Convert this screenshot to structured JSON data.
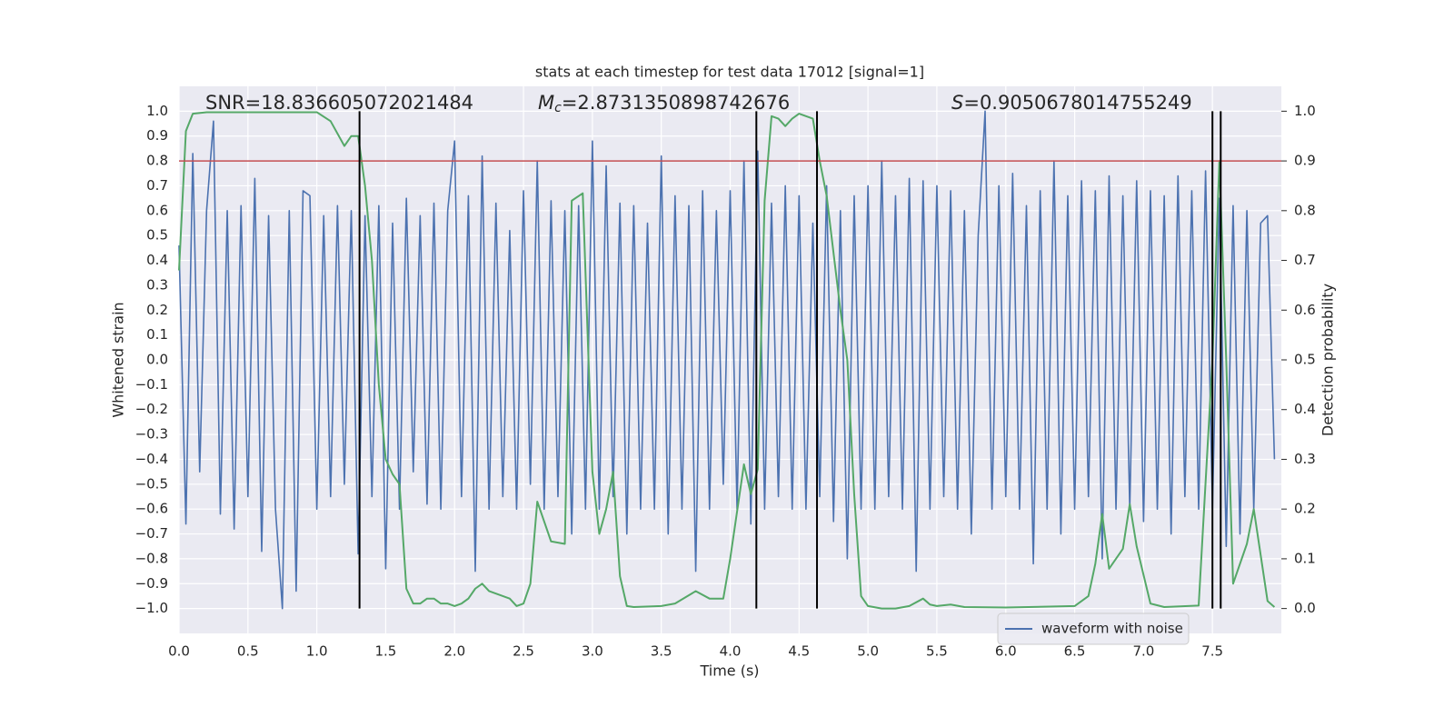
{
  "chart_data": {
    "type": "line",
    "title": "stats at each timestep for test data 17012 [signal=1]",
    "xlabel": "Time (s)",
    "ylabel": "Whitened strain",
    "y2label": "Detection probability",
    "annotations": {
      "snr": "SNR=18.836605072021484",
      "mc_symbol": "M",
      "mc_subscript": "c",
      "mc_value": "=2.8731350898742676",
      "s_symbol": "S",
      "s_value": "=0.9050678014755249"
    },
    "xlim": [
      0,
      8
    ],
    "ylim": [
      -1.1,
      1.1
    ],
    "y2lim": [
      -0.05,
      1.05
    ],
    "grid": true,
    "legend": "lower right",
    "xticks": [
      {
        "value": 0,
        "label": "0.0"
      },
      {
        "value": 0.5,
        "label": "0.5"
      },
      {
        "value": 1,
        "label": "1.0"
      },
      {
        "value": 1.5,
        "label": "1.5"
      },
      {
        "value": 2,
        "label": "2.0"
      },
      {
        "value": 2.5,
        "label": "2.5"
      },
      {
        "value": 3,
        "label": "3.0"
      },
      {
        "value": 3.5,
        "label": "3.5"
      },
      {
        "value": 4,
        "label": "4.0"
      },
      {
        "value": 4.5,
        "label": "4.5"
      },
      {
        "value": 5,
        "label": "5.0"
      },
      {
        "value": 5.5,
        "label": "5.5"
      },
      {
        "value": 6,
        "label": "6.0"
      },
      {
        "value": 6.5,
        "label": "6.5"
      },
      {
        "value": 7,
        "label": "7.0"
      },
      {
        "value": 7.5,
        "label": "7.5"
      }
    ],
    "yticks": [
      {
        "value": -1,
        "label": "−1.0"
      },
      {
        "value": -0.9,
        "label": "−0.9"
      },
      {
        "value": -0.8,
        "label": "−0.8"
      },
      {
        "value": -0.7,
        "label": "−0.7"
      },
      {
        "value": -0.6,
        "label": "−0.6"
      },
      {
        "value": -0.5,
        "label": "−0.5"
      },
      {
        "value": -0.4,
        "label": "−0.4"
      },
      {
        "value": -0.3,
        "label": "−0.3"
      },
      {
        "value": -0.2,
        "label": "−0.2"
      },
      {
        "value": -0.1,
        "label": "−0.1"
      },
      {
        "value": 0,
        "label": "0.0"
      },
      {
        "value": 0.1,
        "label": "0.1"
      },
      {
        "value": 0.2,
        "label": "0.2"
      },
      {
        "value": 0.3,
        "label": "0.3"
      },
      {
        "value": 0.4,
        "label": "0.4"
      },
      {
        "value": 0.5,
        "label": "0.5"
      },
      {
        "value": 0.6,
        "label": "0.6"
      },
      {
        "value": 0.7,
        "label": "0.7"
      },
      {
        "value": 0.8,
        "label": "0.8"
      },
      {
        "value": 0.9,
        "label": "0.9"
      },
      {
        "value": 1,
        "label": "1.0"
      }
    ],
    "y2ticks": [
      {
        "value": 0,
        "label": "0.0"
      },
      {
        "value": 0.1,
        "label": "0.1"
      },
      {
        "value": 0.2,
        "label": "0.2"
      },
      {
        "value": 0.3,
        "label": "0.3"
      },
      {
        "value": 0.4,
        "label": "0.4"
      },
      {
        "value": 0.5,
        "label": "0.5"
      },
      {
        "value": 0.6,
        "label": "0.6"
      },
      {
        "value": 0.7,
        "label": "0.7"
      },
      {
        "value": 0.8,
        "label": "0.8"
      },
      {
        "value": 0.9,
        "label": "0.9"
      },
      {
        "value": 1,
        "label": "1.0"
      }
    ],
    "hline": {
      "value": 0.8,
      "color": "#c44e52"
    },
    "vlines": {
      "x": [
        1.31,
        4.19,
        4.63,
        7.5,
        7.56
      ],
      "range": [
        -1,
        1
      ],
      "color": "#000000"
    },
    "series": [
      {
        "name": "waveform with noise",
        "color": "#4c72b0",
        "x": [
          0,
          0.05,
          0.1,
          0.15,
          0.2,
          0.25,
          0.3,
          0.35,
          0.4,
          0.45,
          0.5,
          0.55,
          0.6,
          0.65,
          0.7,
          0.75,
          0.8,
          0.85,
          0.9,
          0.95,
          1,
          1.05,
          1.1,
          1.15,
          1.2,
          1.25,
          1.3,
          1.35,
          1.4,
          1.45,
          1.5,
          1.55,
          1.6,
          1.65,
          1.7,
          1.75,
          1.8,
          1.85,
          1.9,
          1.95,
          2,
          2.05,
          2.1,
          2.15,
          2.2,
          2.25,
          2.3,
          2.35,
          2.4,
          2.45,
          2.5,
          2.55,
          2.6,
          2.65,
          2.7,
          2.75,
          2.8,
          2.85,
          2.9,
          2.95,
          3,
          3.05,
          3.1,
          3.15,
          3.2,
          3.25,
          3.3,
          3.35,
          3.4,
          3.45,
          3.5,
          3.55,
          3.6,
          3.65,
          3.7,
          3.75,
          3.8,
          3.85,
          3.9,
          3.95,
          4,
          4.05,
          4.1,
          4.15,
          4.2,
          4.25,
          4.3,
          4.35,
          4.4,
          4.45,
          4.5,
          4.55,
          4.6,
          4.65,
          4.7,
          4.75,
          4.8,
          4.85,
          4.9,
          4.95,
          5,
          5.05,
          5.1,
          5.15,
          5.2,
          5.25,
          5.3,
          5.35,
          5.4,
          5.45,
          5.5,
          5.55,
          5.6,
          5.65,
          5.7,
          5.75,
          5.8,
          5.85,
          5.9,
          5.95,
          6,
          6.05,
          6.1,
          6.15,
          6.2,
          6.25,
          6.3,
          6.35,
          6.4,
          6.45,
          6.5,
          6.55,
          6.6,
          6.65,
          6.7,
          6.75,
          6.8,
          6.85,
          6.9,
          6.95,
          7,
          7.05,
          7.1,
          7.15,
          7.2,
          7.25,
          7.3,
          7.35,
          7.4,
          7.45,
          7.5,
          7.55,
          7.6,
          7.65,
          7.7,
          7.75,
          7.8,
          7.85,
          7.9,
          7.95
        ],
        "values": [
          0.46,
          -0.66,
          0.83,
          -0.45,
          0.6,
          0.96,
          -0.62,
          0.6,
          -0.68,
          0.62,
          -0.55,
          0.73,
          -0.77,
          0.58,
          -0.6,
          -1.0,
          0.6,
          -0.93,
          0.68,
          0.66,
          -0.6,
          0.58,
          -0.55,
          0.62,
          -0.5,
          0.6,
          -0.78,
          0.58,
          -0.55,
          0.62,
          -0.84,
          0.55,
          -0.6,
          0.65,
          -0.45,
          0.58,
          -0.58,
          0.63,
          -0.6,
          0.6,
          0.88,
          -0.55,
          0.66,
          -0.85,
          0.82,
          -0.6,
          0.63,
          -0.55,
          0.52,
          -0.6,
          0.68,
          -0.5,
          0.8,
          -0.6,
          0.64,
          -0.55,
          0.6,
          -0.7,
          0.62,
          -0.6,
          0.88,
          -0.6,
          0.78,
          -0.55,
          0.63,
          -0.7,
          0.62,
          -0.6,
          0.55,
          -0.6,
          0.82,
          -0.7,
          0.66,
          -0.6,
          0.62,
          -0.85,
          0.68,
          -0.6,
          0.6,
          -0.5,
          0.68,
          -0.6,
          0.8,
          -0.66,
          0.84,
          -0.6,
          0.63,
          -0.55,
          0.7,
          -0.6,
          0.66,
          -0.6,
          0.55,
          -0.55,
          0.7,
          -0.65,
          0.6,
          -0.8,
          0.66,
          -0.6,
          0.7,
          -0.6,
          0.8,
          -0.55,
          0.66,
          -0.6,
          0.73,
          -0.85,
          0.72,
          -0.6,
          0.7,
          -0.55,
          0.68,
          -0.6,
          0.6,
          -0.7,
          0.5,
          1.0,
          -0.6,
          0.7,
          -0.55,
          0.75,
          -0.6,
          0.62,
          -0.82,
          0.68,
          -0.6,
          0.8,
          -0.7,
          0.66,
          -0.6,
          0.72,
          -0.55,
          0.68,
          -0.8,
          0.74,
          -0.6,
          0.66,
          -0.6,
          0.72,
          -0.65,
          0.68,
          -0.6,
          0.66,
          -0.7,
          0.74,
          -0.55,
          0.68,
          -0.6,
          0.76,
          -0.6,
          0.65,
          -0.75,
          0.62,
          -0.7,
          0.6,
          -0.6,
          0.55,
          0.58,
          -0.4
        ]
      },
      {
        "color": "#55a868",
        "axis": "y2",
        "x": [
          0,
          0.05,
          0.1,
          0.2,
          0.4,
          0.6,
          0.8,
          1.0,
          1.1,
          1.2,
          1.25,
          1.3,
          1.35,
          1.4,
          1.45,
          1.5,
          1.55,
          1.6,
          1.65,
          1.7,
          1.75,
          1.8,
          1.85,
          1.9,
          1.95,
          2.0,
          2.05,
          2.1,
          2.15,
          2.2,
          2.25,
          2.3,
          2.4,
          2.45,
          2.5,
          2.55,
          2.6,
          2.7,
          2.8,
          2.85,
          2.93,
          3.0,
          3.05,
          3.1,
          3.15,
          3.2,
          3.25,
          3.3,
          3.5,
          3.6,
          3.75,
          3.85,
          3.95,
          4.0,
          4.1,
          4.15,
          4.2,
          4.25,
          4.3,
          4.35,
          4.4,
          4.45,
          4.5,
          4.6,
          4.65,
          4.7,
          4.8,
          4.85,
          4.9,
          4.95,
          5.0,
          5.1,
          5.2,
          5.3,
          5.4,
          5.45,
          5.5,
          5.6,
          5.7,
          6.0,
          6.5,
          6.6,
          6.65,
          6.7,
          6.75,
          6.85,
          6.9,
          6.95,
          7.05,
          7.15,
          7.4,
          7.5,
          7.55,
          7.6,
          7.65,
          7.75,
          7.8,
          7.9,
          7.95
        ],
        "values": [
          0.68,
          0.96,
          0.995,
          0.998,
          0.998,
          0.998,
          0.998,
          0.998,
          0.98,
          0.93,
          0.95,
          0.95,
          0.85,
          0.7,
          0.45,
          0.3,
          0.27,
          0.25,
          0.04,
          0.01,
          0.01,
          0.02,
          0.02,
          0.01,
          0.01,
          0.005,
          0.01,
          0.02,
          0.04,
          0.05,
          0.035,
          0.03,
          0.02,
          0.005,
          0.01,
          0.05,
          0.215,
          0.135,
          0.13,
          0.82,
          0.835,
          0.275,
          0.15,
          0.2,
          0.275,
          0.065,
          0.005,
          0.003,
          0.005,
          0.01,
          0.035,
          0.02,
          0.02,
          0.1,
          0.29,
          0.23,
          0.28,
          0.82,
          0.99,
          0.985,
          0.97,
          0.985,
          0.995,
          0.985,
          0.9,
          0.83,
          0.6,
          0.5,
          0.23,
          0.025,
          0.005,
          0.0,
          0.0,
          0.005,
          0.02,
          0.008,
          0.005,
          0.008,
          0.003,
          0.002,
          0.005,
          0.025,
          0.09,
          0.19,
          0.08,
          0.12,
          0.21,
          0.125,
          0.01,
          0.003,
          0.006,
          0.5,
          0.9,
          0.5,
          0.05,
          0.13,
          0.2,
          0.015,
          0.003
        ]
      }
    ]
  }
}
